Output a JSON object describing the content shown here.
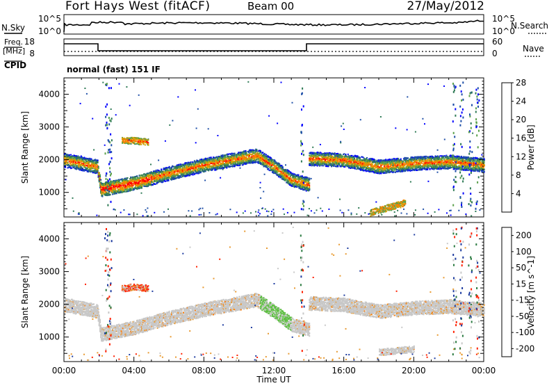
{
  "header": {
    "title": "Fort Hays West (fitACF)",
    "beam": "Beam 00",
    "date": "27/May/2012"
  },
  "noise_panel": {
    "left_label": "N.Sky",
    "left_ticks": [
      "10^5",
      "10^0"
    ],
    "right_ticks": [
      "10^5",
      "10^0"
    ],
    "right_label": "N.Search"
  },
  "freq_panel": {
    "left_label_1": "Freq.",
    "left_label_2": "[MHz]",
    "left_ticks": [
      "18",
      "8"
    ],
    "right_ticks": [
      "60",
      "0"
    ],
    "right_label": "Nave",
    "cpid_label": "CPID",
    "cpid_text": "normal (fast) 151 IF"
  },
  "chart_data": [
    {
      "type": "heatmap",
      "title": "",
      "xlabel": "Time UT",
      "ylabel": "Slant Range [km]",
      "xlim": [
        0,
        24
      ],
      "x_tick_labels": [
        "00:00",
        "04:00",
        "08:00",
        "12:00",
        "16:00",
        "20:00",
        "00:00"
      ],
      "ylim": [
        250,
        4500
      ],
      "y_ticks": [
        1000,
        2000,
        3000,
        4000
      ],
      "colorbar": {
        "label": "Power [dB]",
        "ticks": [
          "4",
          "8",
          "12",
          "16",
          "20",
          "24",
          "28"
        ],
        "colors": [
          "#0000ff",
          "#1f4fa8",
          "#2e7a55",
          "#5aa04a",
          "#d4a000",
          "#ff7a00",
          "#ff0000"
        ]
      },
      "echo_bands": [
        {
          "x": [
            0,
            1,
            1.9,
            2.1,
            4,
            6,
            8,
            10,
            11,
            12,
            13,
            14
          ],
          "y": [
            2000,
            1900,
            1800,
            1100,
            1300,
            1600,
            1850,
            2050,
            2150,
            1800,
            1400,
            1250
          ]
        },
        {
          "x": [
            14,
            16,
            18,
            20,
            22,
            24
          ],
          "y": [
            2050,
            2000,
            1800,
            1900,
            1950,
            1850
          ]
        },
        {
          "x": [
            3.3,
            4,
            4.8
          ],
          "y": [
            2600,
            2600,
            2550
          ]
        },
        {
          "x": [
            17.5,
            18.5,
            19.5
          ],
          "y": [
            400,
            550,
            700
          ]
        }
      ]
    },
    {
      "type": "heatmap",
      "title": "",
      "xlabel": "Time UT",
      "ylabel": "Slant Range [km]",
      "xlim": [
        0,
        24
      ],
      "x_tick_labels": [
        "00:00",
        "04:00",
        "08:00",
        "12:00",
        "16:00",
        "20:00",
        "00:00"
      ],
      "ylim": [
        250,
        4500
      ],
      "y_ticks": [
        1000,
        2000,
        3000,
        4000
      ],
      "colorbar": {
        "label": "Velocity [m s^-1]",
        "ticks": [
          "200",
          "100",
          "50",
          "15",
          "-15",
          "-50",
          "-100",
          "-200"
        ],
        "colors": [
          "#1e3ca0",
          "#2a7a40",
          "#5cc040",
          "#c8c8c8",
          "#e89a30",
          "#ff7a00",
          "#ff2000",
          "#ff0000"
        ]
      },
      "echo_bands": [
        {
          "x": [
            0,
            1,
            1.9,
            2.1,
            4,
            6,
            8,
            10,
            11,
            12,
            13,
            14
          ],
          "y": [
            2000,
            1900,
            1800,
            1100,
            1300,
            1600,
            1850,
            2050,
            2150,
            1800,
            1400,
            1250
          ]
        },
        {
          "x": [
            14,
            16,
            18,
            20,
            22,
            24
          ],
          "y": [
            2050,
            2000,
            1800,
            1900,
            1950,
            1850
          ]
        },
        {
          "x": [
            3.3,
            4,
            4.8
          ],
          "y": [
            2500,
            2550,
            2500
          ]
        },
        {
          "x": [
            18,
            19,
            20
          ],
          "y": [
            550,
            600,
            650
          ]
        }
      ]
    }
  ]
}
